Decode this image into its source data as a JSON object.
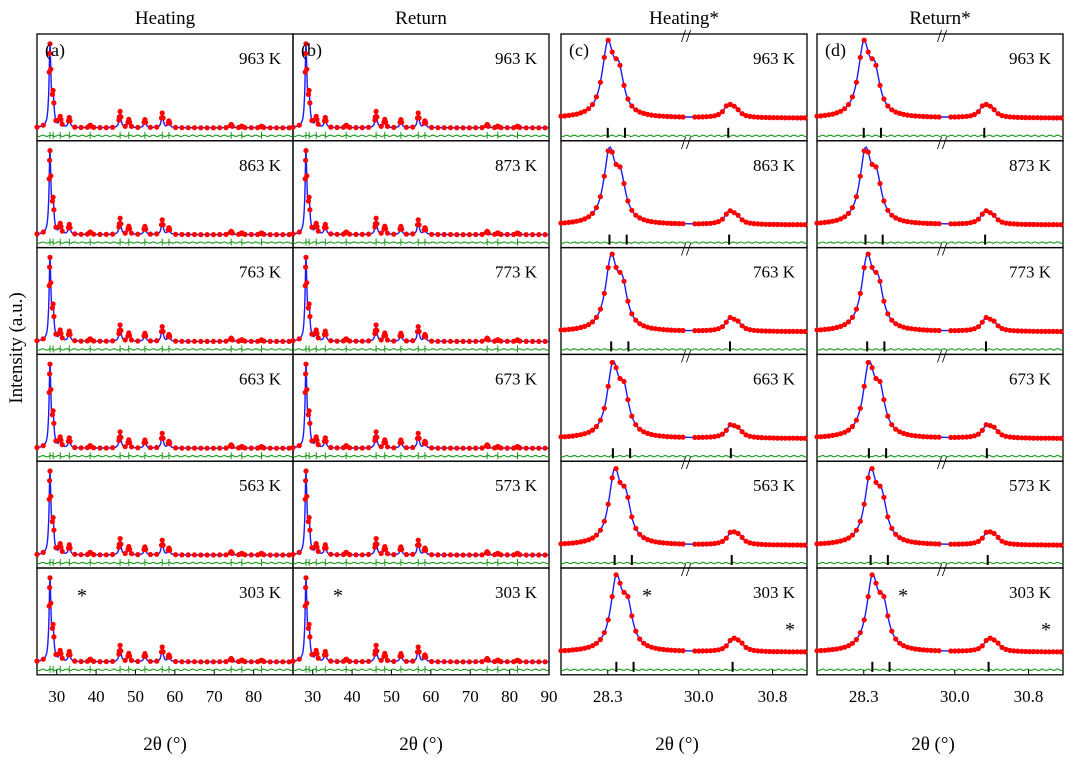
{
  "figure": {
    "y_axis_label": "Intensity (a.u.)",
    "x_axis_label": "2θ (°)"
  },
  "chart_data": {
    "type": "line",
    "colors": {
      "observed": "#ff0000",
      "calculated": "#1a1aff",
      "difference": "#1a9a1a",
      "bragg": "#000000",
      "frame": "#000000"
    },
    "columns": [
      {
        "title": "Heating",
        "tag": "(a)",
        "kind": "full",
        "xlim": [
          25,
          90
        ],
        "xticks": [
          30,
          40,
          50,
          60,
          70,
          80
        ],
        "rows": [
          {
            "temperature": "963 K",
            "star": ""
          },
          {
            "temperature": "863 K",
            "star": ""
          },
          {
            "temperature": "763 K",
            "star": ""
          },
          {
            "temperature": "663 K",
            "star": ""
          },
          {
            "temperature": "563 K",
            "star": ""
          },
          {
            "temperature": "303 K",
            "star": "*"
          }
        ]
      },
      {
        "title": "Return",
        "tag": "(b)",
        "kind": "full",
        "xlim": [
          25,
          90
        ],
        "xticks": [
          30,
          40,
          50,
          60,
          70,
          80,
          90
        ],
        "rows": [
          {
            "temperature": "963 K",
            "star": ""
          },
          {
            "temperature": "873 K",
            "star": ""
          },
          {
            "temperature": "773 K",
            "star": ""
          },
          {
            "temperature": "673 K",
            "star": ""
          },
          {
            "temperature": "573 K",
            "star": ""
          },
          {
            "temperature": "303 K",
            "star": "*"
          }
        ]
      },
      {
        "title": "Heating*",
        "tag": "(c)",
        "kind": "zoom",
        "xticks": [
          "28.3",
          "30.0",
          "30.8"
        ],
        "rows": [
          {
            "temperature": "963 K",
            "star": ""
          },
          {
            "temperature": "863 K",
            "star": ""
          },
          {
            "temperature": "763 K",
            "star": ""
          },
          {
            "temperature": "663 K",
            "star": ""
          },
          {
            "temperature": "563 K",
            "star": ""
          },
          {
            "temperature": "303 K",
            "star": "*"
          }
        ]
      },
      {
        "title": "Return*",
        "tag": "(d)",
        "kind": "zoom",
        "xticks": [
          "28.3",
          "30.0",
          "30.8"
        ],
        "rows": [
          {
            "temperature": "963 K",
            "star": ""
          },
          {
            "temperature": "873 K",
            "star": ""
          },
          {
            "temperature": "773 K",
            "star": ""
          },
          {
            "temperature": "673 K",
            "star": ""
          },
          {
            "temperature": "573 K",
            "star": ""
          },
          {
            "temperature": "303 K",
            "star": "*"
          }
        ]
      }
    ],
    "full_pattern_peaks": [
      {
        "two_theta": 28.3,
        "relative_intensity": 1.0
      },
      {
        "two_theta": 29.1,
        "relative_intensity": 0.35
      },
      {
        "two_theta": 30.9,
        "relative_intensity": 0.12
      },
      {
        "two_theta": 33.2,
        "relative_intensity": 0.12
      },
      {
        "two_theta": 38.5,
        "relative_intensity": 0.03
      },
      {
        "two_theta": 46.1,
        "relative_intensity": 0.2
      },
      {
        "two_theta": 48.3,
        "relative_intensity": 0.1
      },
      {
        "two_theta": 52.4,
        "relative_intensity": 0.1
      },
      {
        "two_theta": 56.8,
        "relative_intensity": 0.18
      },
      {
        "two_theta": 58.5,
        "relative_intensity": 0.08
      },
      {
        "two_theta": 74.3,
        "relative_intensity": 0.04
      },
      {
        "two_theta": 77.0,
        "relative_intensity": 0.02
      },
      {
        "two_theta": 82.0,
        "relative_intensity": 0.02
      }
    ]
  }
}
